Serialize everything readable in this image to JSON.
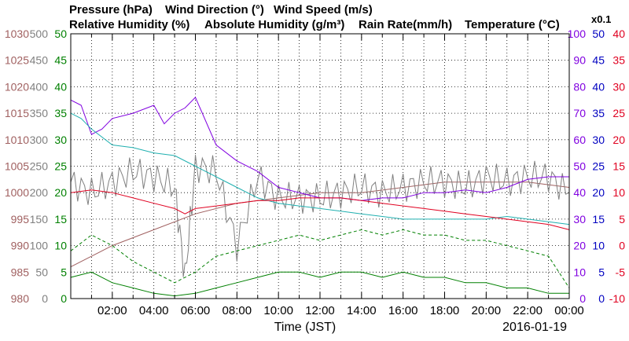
{
  "chart_data": {
    "type": "line",
    "date": "2016-01-19",
    "xlabel": "Time (JST)",
    "x_ticks": [
      "02:00",
      "04:00",
      "06:00",
      "08:00",
      "10:00",
      "12:00",
      "14:00",
      "16:00",
      "18:00",
      "20:00",
      "22:00",
      "00:00"
    ],
    "x_range_hours": [
      0,
      24
    ],
    "grid": true,
    "colors": {
      "pressure": "#a06060",
      "wind_direction": "#808080",
      "wind_speed": "#008000",
      "relative_humidity": "#8000e0",
      "absolute_humidity": "#20b0b0",
      "rain_rate": "#0000c0",
      "temperature": "#e00020"
    },
    "axes": {
      "pressure": {
        "label": "Pressure (hPa)",
        "min": 980,
        "max": 1030,
        "ticks": [
          "1030",
          "1025",
          "1020",
          "1015",
          "1010",
          "1005",
          "1000",
          "995",
          "990",
          "985",
          "980"
        ]
      },
      "wind_direction": {
        "label": "Wind Direction (°)",
        "min": 0,
        "max": 500,
        "ticks": [
          "500",
          "450",
          "400",
          "350",
          "300",
          "250",
          "200",
          "150",
          "100",
          "50",
          "0"
        ]
      },
      "wind_speed": {
        "label": "Wind Speed (m/s)",
        "min": 0,
        "max": 50,
        "ticks": [
          "50",
          "45",
          "40",
          "35",
          "30",
          "25",
          "20",
          "15",
          "10",
          "5",
          "0"
        ]
      },
      "relative_humidity": {
        "label": "Relative Humidity (%)",
        "min": 0,
        "max": 100,
        "ticks": [
          "100",
          "90",
          "80",
          "70",
          "60",
          "50",
          "40",
          "30",
          "20",
          "10",
          "0"
        ]
      },
      "absolute_humidity": {
        "label": "Absolute Humidity (g/m³)",
        "scale_note": "x0.1"
      },
      "rain_rate": {
        "label": "Rain Rate(mm/h)",
        "min": 0,
        "max": 50,
        "ticks": [
          "50",
          "45",
          "40",
          "35",
          "30",
          "25",
          "20",
          "15",
          "10",
          "5",
          "0"
        ]
      },
      "temperature": {
        "label": "Temperature (°C)",
        "min": -10,
        "max": 40,
        "ticks": [
          "40",
          "35",
          "30",
          "25",
          "20",
          "15",
          "10",
          "5",
          "0",
          "-5",
          "-10"
        ]
      }
    },
    "series": [
      {
        "name": "Pressure (hPa)",
        "key": "pressure",
        "style": "solid",
        "x": [
          0,
          2,
          4,
          6,
          8,
          10,
          12,
          14,
          16,
          18,
          20,
          22,
          24
        ],
        "y": [
          986,
          990,
          993,
          996,
          998,
          999,
          1000,
          1000,
          1001,
          1002,
          1002,
          1002,
          1001
        ]
      },
      {
        "name": "Wind Direction (°)",
        "key": "wind_direction",
        "style": "solid-noisy",
        "x": [
          0,
          1,
          2,
          3,
          4,
          5,
          5.5,
          6,
          7,
          8,
          9,
          10,
          11,
          12,
          13,
          14,
          15,
          16,
          17,
          18,
          19,
          20,
          21,
          22,
          23,
          24
        ],
        "y": [
          220,
          200,
          220,
          240,
          230,
          210,
          40,
          250,
          240,
          100,
          230,
          190,
          190,
          190,
          200,
          210,
          200,
          210,
          220,
          220,
          210,
          230,
          220,
          230,
          230,
          200
        ]
      },
      {
        "name": "Wind Speed (m/s) mean",
        "key": "wind_speed",
        "style": "solid",
        "x": [
          0,
          1,
          2,
          3,
          4,
          5,
          6,
          7,
          8,
          9,
          10,
          11,
          12,
          13,
          14,
          15,
          16,
          17,
          18,
          19,
          20,
          21,
          22,
          23,
          24
        ],
        "y": [
          4,
          5,
          3,
          2,
          1,
          0.5,
          1,
          2,
          3,
          4,
          5,
          5,
          4,
          5,
          5,
          4,
          5,
          4,
          4,
          3,
          3,
          2,
          2,
          1,
          1
        ]
      },
      {
        "name": "Wind Speed (m/s) gust",
        "key": "wind_speed",
        "style": "dashed",
        "x": [
          0,
          1,
          2,
          3,
          4,
          5,
          6,
          7,
          8,
          9,
          10,
          11,
          12,
          13,
          14,
          15,
          16,
          17,
          18,
          19,
          20,
          21,
          22,
          23,
          24
        ],
        "y": [
          9,
          12,
          10,
          7,
          5,
          3,
          5,
          8,
          9,
          10,
          11,
          12,
          11,
          12,
          13,
          12,
          13,
          12,
          12,
          11,
          11,
          10,
          9,
          8,
          2
        ]
      },
      {
        "name": "Relative Humidity (%)",
        "key": "relative_humidity",
        "style": "solid",
        "x": [
          0,
          0.5,
          1,
          1.5,
          2,
          3,
          4,
          4.5,
          5,
          5.5,
          6,
          7,
          8,
          9,
          10,
          11,
          12,
          13,
          14,
          15,
          16,
          17,
          18,
          19,
          20,
          21,
          22,
          23,
          24
        ],
        "y": [
          75,
          73,
          62,
          64,
          68,
          70,
          73,
          66,
          70,
          72,
          76,
          58,
          52,
          48,
          42,
          40,
          38,
          38,
          37,
          38,
          38,
          40,
          40,
          41,
          40,
          42,
          45,
          46,
          46
        ]
      },
      {
        "name": "Absolute Humidity (g/m³) x0.1",
        "key": "absolute_humidity",
        "style": "solid",
        "x": [
          0,
          0.5,
          1,
          2,
          3,
          4,
          5,
          6,
          7,
          8,
          9,
          10,
          11,
          12,
          13,
          14,
          15,
          16,
          17,
          18,
          19,
          20,
          21,
          22,
          23,
          24
        ],
        "y": [
          70,
          68,
          64,
          58,
          57,
          55,
          54,
          50,
          46,
          42,
          38,
          36,
          35,
          34,
          33,
          32,
          31,
          30,
          30,
          30,
          30,
          30,
          31,
          30,
          29,
          28
        ]
      },
      {
        "name": "Temperature (°C)",
        "key": "temperature",
        "style": "solid",
        "x": [
          0,
          1,
          2,
          3,
          4,
          5,
          5.5,
          6,
          7,
          8,
          9,
          10,
          11,
          12,
          13,
          14,
          15,
          16,
          17,
          18,
          19,
          20,
          21,
          22,
          23,
          24
        ],
        "y": [
          10,
          10.5,
          10,
          9,
          8,
          7,
          6,
          7,
          7.5,
          8,
          8.5,
          8.5,
          9,
          9,
          9,
          8.5,
          8,
          7.5,
          7,
          6.5,
          6,
          5.5,
          5,
          4.5,
          4,
          3
        ]
      },
      {
        "name": "Rain Rate(mm/h)",
        "key": "rain_rate",
        "style": "solid",
        "x": [
          0,
          24
        ],
        "y": [
          0,
          0
        ]
      }
    ]
  }
}
